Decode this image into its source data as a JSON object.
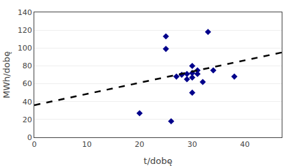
{
  "chart_data": {
    "type": "scatter",
    "xlabel": "t/dobę",
    "ylabel": "MWh/dobę",
    "series": [
      {
        "type": "scatter",
        "marker": "diamond",
        "color": "#00008B",
        "x": [
          20,
          25,
          25,
          26,
          27,
          28,
          29,
          29,
          30,
          30,
          30,
          30,
          31,
          31,
          32,
          33,
          34,
          38
        ],
        "values": [
          27,
          113,
          99,
          18,
          68,
          70,
          65,
          71,
          80,
          72,
          67,
          50,
          71,
          75,
          62,
          118,
          75,
          68
        ]
      },
      {
        "type": "line",
        "line_style": "dashed",
        "color": "#000000",
        "x": [
          0,
          47
        ],
        "values": [
          36,
          95
        ]
      }
    ],
    "xlim": [
      0,
      47
    ],
    "ylim": [
      0,
      140
    ],
    "xticks": [
      0,
      10,
      20,
      30,
      40
    ],
    "yticks": [
      0,
      20,
      40,
      60,
      80,
      100,
      120,
      140
    ],
    "grid": "y"
  }
}
